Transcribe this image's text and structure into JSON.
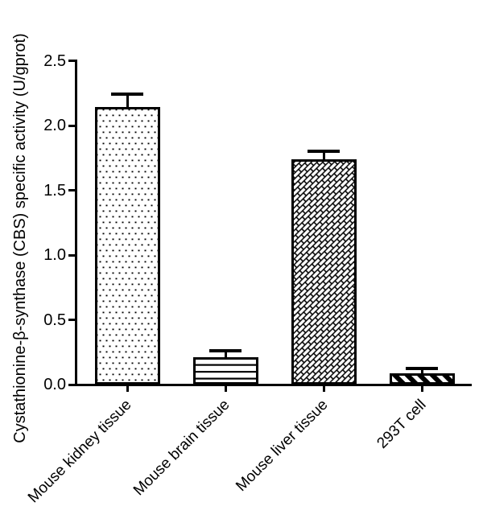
{
  "figure": {
    "background_color": "#ffffff",
    "ink_color": "#000000"
  },
  "chart_data": {
    "type": "bar",
    "title": "",
    "ylabel": "Cystathionine-β-synthase (CBS) specific activity (U/gprot)",
    "xlabel": "",
    "categories": [
      "Mouse kidney tissue",
      "Mouse brain tissue",
      "Mouse liver tissue",
      "293T cell"
    ],
    "values": [
      2.14,
      0.21,
      1.74,
      0.09
    ],
    "errors_upper": [
      0.09,
      0.04,
      0.05,
      0.02
    ],
    "error_bar_style": "upper T caps only",
    "bar_fill_patterns": [
      "dots",
      "horizontal-lines",
      "diagonal-bricks",
      "diagonal-stripes"
    ],
    "bar_fill_color": "#ffffff",
    "bar_edge_color": "#000000",
    "ylim": [
      0.0,
      2.5
    ],
    "yticks": [
      0.0,
      0.5,
      1.0,
      1.5,
      2.0,
      2.5
    ],
    "ytick_labels": [
      "0.0",
      "0.5",
      "1.0",
      "1.5",
      "2.0",
      "2.5"
    ],
    "xtick_label_rotation_deg": 45,
    "grid": false,
    "legend_position": "none"
  }
}
